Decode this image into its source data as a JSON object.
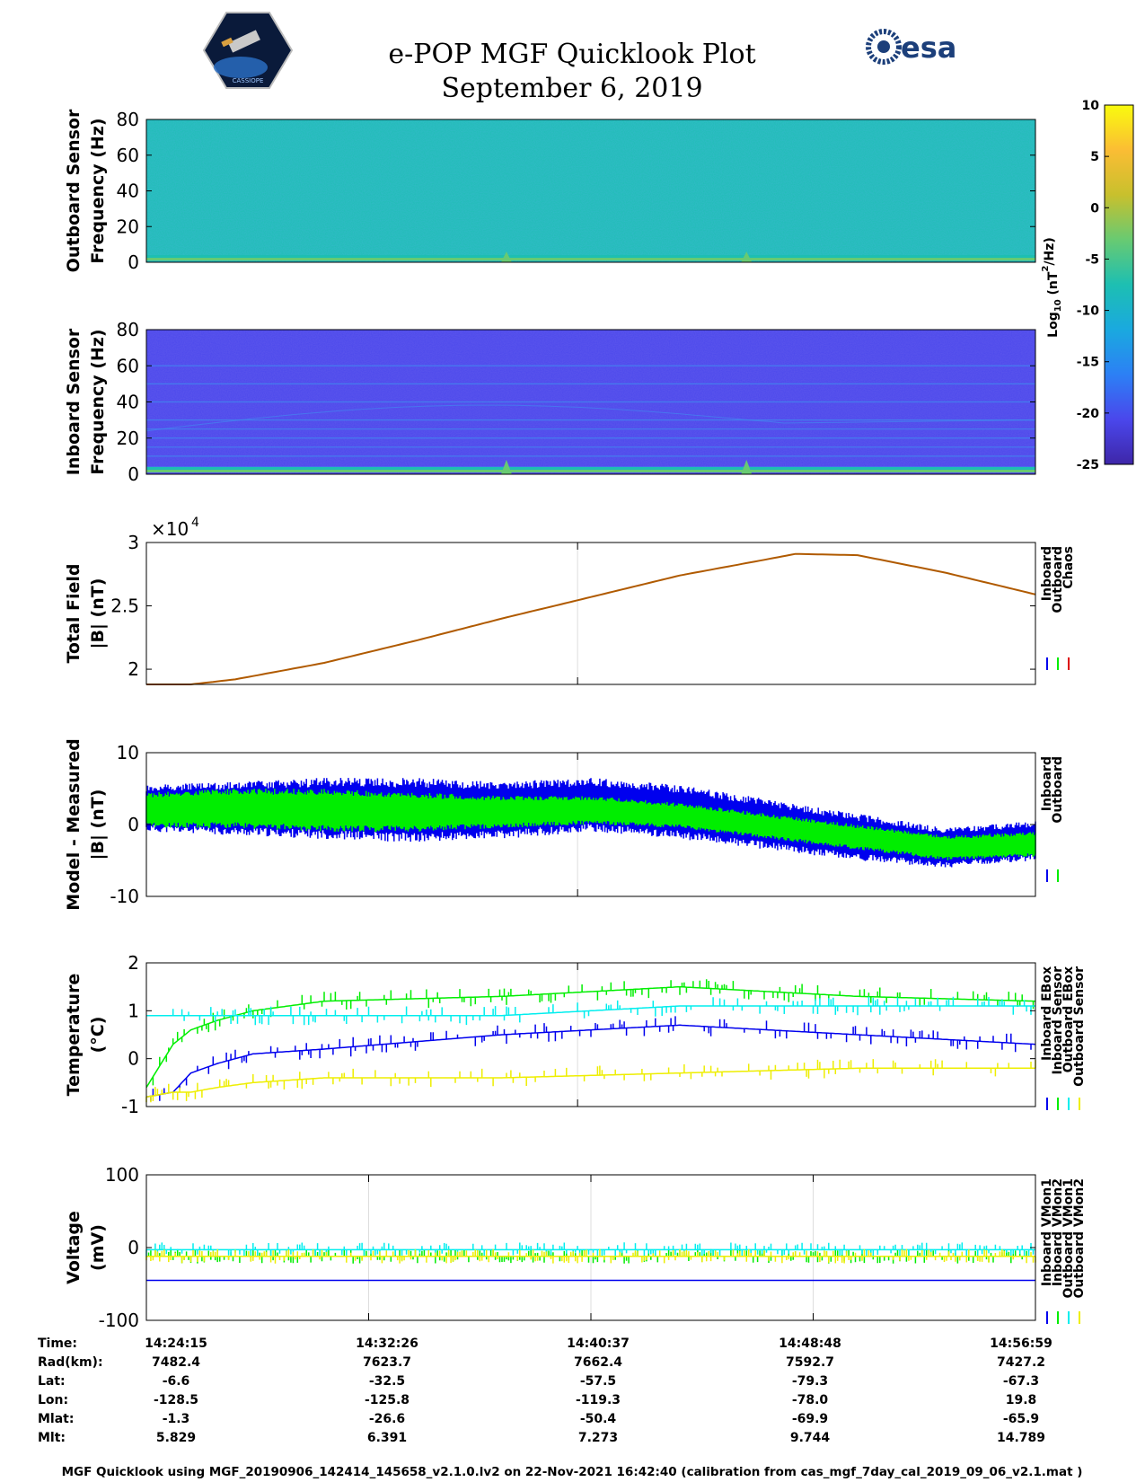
{
  "header": {
    "title": "e-POP MGF Quicklook Plot",
    "date": "September 6, 2019",
    "logo_left": "CASSIOPE",
    "logo_right": "esa"
  },
  "colorbar": {
    "label_base": "Log",
    "label_sub": "10",
    "label_unit_open": " (nT",
    "label_sup": "2",
    "label_unit_close": "/Hz)",
    "ticks": [
      10,
      5,
      0,
      -5,
      -10,
      -15,
      -20,
      -25
    ],
    "range": [
      -25,
      10
    ],
    "gradient": [
      "#3e26a8",
      "#4a47ec",
      "#2c80f5",
      "#1aa9df",
      "#1dbfb2",
      "#68ca72",
      "#c8c02d",
      "#fbbd34",
      "#f9fb0e"
    ]
  },
  "colors": {
    "blue": "#0000ee",
    "green": "#00ee00",
    "red": "#dd0000",
    "cyan": "#00eeee",
    "yellow": "#eeee00",
    "brown": "#b05a00",
    "spec_out_bg": "#2d86ee",
    "spec_in_bg": "#4540d8"
  },
  "footer": "MGF Quicklook using MGF_20190906_142414_145658_v2.1.0.lv2 on 22-Nov-2021 16:42:40 (calibration from cas_mgf_7day_cal_2019_09_06_v2.1.mat )",
  "info_table": {
    "row_labels": [
      "Time:",
      "Rad(km):",
      "Lat:",
      "Lon:",
      "Mlat:",
      "Mlt:"
    ],
    "columns": [
      {
        "Time": "14:24:15",
        "Rad": "7482.4",
        "Lat": "-6.6",
        "Lon": "-128.5",
        "Mlat": "-1.3",
        "Mlt": "5.829"
      },
      {
        "Time": "14:32:26",
        "Rad": "7623.7",
        "Lat": "-32.5",
        "Lon": "-125.8",
        "Mlat": "-26.6",
        "Mlt": "6.391"
      },
      {
        "Time": "14:40:37",
        "Rad": "7662.4",
        "Lat": "-57.5",
        "Lon": "-119.3",
        "Mlat": "-50.4",
        "Mlt": "7.273"
      },
      {
        "Time": "14:48:48",
        "Rad": "7592.7",
        "Lat": "-79.3",
        "Lon": "-78.0",
        "Mlat": "-69.9",
        "Mlt": "9.744"
      },
      {
        "Time": "14:56:59",
        "Rad": "7427.2",
        "Lat": "-67.3",
        "Lon": "19.8",
        "Mlat": "-65.9",
        "Mlt": "14.789"
      }
    ]
  },
  "chart_data": [
    {
      "type": "heatmap",
      "id": "outboard",
      "ylabel": [
        "Outboard Sensor",
        "Frequency (Hz)"
      ],
      "ylim": [
        0,
        80
      ],
      "yticks": [
        0,
        20,
        40,
        60,
        80
      ],
      "background_log10": -8,
      "bands": [
        {
          "freq": 1.5,
          "log10": -2
        },
        {
          "freq": 3.0,
          "log10": -6
        }
      ],
      "spikes": [
        {
          "t": 0.405,
          "freq": 6,
          "log10": -4
        },
        {
          "t": 0.675,
          "freq": 6,
          "log10": -5
        }
      ]
    },
    {
      "type": "heatmap",
      "id": "inboard",
      "ylabel": [
        "Inboard Sensor",
        "Frequency (Hz)"
      ],
      "ylim": [
        0,
        80
      ],
      "yticks": [
        0,
        20,
        40,
        60,
        80
      ],
      "background_log10": -21,
      "harmonic_lines_hz": [
        4,
        10,
        15,
        20,
        25,
        30,
        40,
        50,
        60
      ],
      "bands": [
        {
          "freq": 1.5,
          "log10": -2
        },
        {
          "freq": 3.0,
          "log10": -6
        }
      ],
      "spikes": [
        {
          "t": 0.405,
          "freq": 8,
          "log10": -4
        },
        {
          "t": 0.675,
          "freq": 8,
          "log10": -4
        }
      ]
    },
    {
      "type": "line",
      "id": "totalfield",
      "ylabel": [
        "Total Field",
        "|B| (nT)"
      ],
      "exponent_label": "×10",
      "exponent_sup": "4",
      "ylim": [
        1.88,
        3.0
      ],
      "yticks": [
        2,
        2.5,
        3
      ],
      "yticklabels": [
        "2",
        "2.5",
        "3"
      ],
      "x": [
        0,
        0.05,
        0.1,
        0.2,
        0.3,
        0.4,
        0.5,
        0.6,
        0.7,
        0.73,
        0.8,
        0.9,
        1.0
      ],
      "series": [
        {
          "name": "Inboard",
          "color": "blue",
          "values": [
            1.88,
            1.88,
            1.92,
            2.05,
            2.22,
            2.4,
            2.57,
            2.74,
            2.87,
            2.91,
            2.9,
            2.76,
            2.59
          ]
        },
        {
          "name": "Outboard",
          "color": "green",
          "values": [
            1.88,
            1.88,
            1.92,
            2.05,
            2.22,
            2.4,
            2.57,
            2.74,
            2.87,
            2.91,
            2.9,
            2.76,
            2.59
          ]
        },
        {
          "name": "Chaos",
          "color": "red",
          "values": [
            1.88,
            1.88,
            1.92,
            2.05,
            2.22,
            2.4,
            2.57,
            2.74,
            2.87,
            2.91,
            2.9,
            2.76,
            2.59
          ]
        }
      ],
      "legend": [
        "Inboard",
        "Outboard",
        "Chaos"
      ]
    },
    {
      "type": "line",
      "id": "modeldiff",
      "ylabel": [
        "Model - Measured",
        "|B| (nT)"
      ],
      "ylim": [
        -10,
        10
      ],
      "yticks": [
        -10,
        0,
        10
      ],
      "yticklabels": [
        "-10",
        "0",
        "10"
      ],
      "x": [
        0,
        0.1,
        0.2,
        0.3,
        0.4,
        0.5,
        0.6,
        0.7,
        0.8,
        0.9,
        1.0
      ],
      "series": [
        {
          "name": "Inboard",
          "color": "blue",
          "upper": [
            5.5,
            6.0,
            6.5,
            6.5,
            6.0,
            6.5,
            5.5,
            3.5,
            1.5,
            -0.5,
            0.5
          ],
          "lower": [
            -1.0,
            -1.5,
            -2.0,
            -2.5,
            -2.0,
            -1.0,
            -2.0,
            -3.5,
            -5.0,
            -6.0,
            -5.0
          ]
        },
        {
          "name": "Outboard",
          "color": "green",
          "upper": [
            4.5,
            5.0,
            5.0,
            4.5,
            4.0,
            4.0,
            3.0,
            1.5,
            0.0,
            -1.5,
            -1.0
          ],
          "lower": [
            -0.5,
            -0.5,
            -1.0,
            -1.0,
            -0.5,
            0.0,
            -0.5,
            -2.0,
            -3.5,
            -5.0,
            -4.5
          ]
        }
      ],
      "legend": [
        "Inboard",
        "Outboard"
      ]
    },
    {
      "type": "line",
      "id": "temperature",
      "ylabel": [
        "Temperature",
        "(°C)"
      ],
      "ylim": [
        -1,
        2
      ],
      "yticks": [
        -1,
        0,
        1,
        2
      ],
      "yticklabels": [
        "-1",
        "0",
        "1",
        "2"
      ],
      "x": [
        0,
        0.03,
        0.05,
        0.08,
        0.12,
        0.2,
        0.4,
        0.6,
        0.8,
        1.0
      ],
      "series": [
        {
          "name": "Inboard EBox",
          "color": "blue",
          "values": [
            -0.8,
            -0.7,
            -0.3,
            -0.1,
            0.1,
            0.2,
            0.5,
            0.7,
            0.5,
            0.3
          ]
        },
        {
          "name": "Inboard Sensor",
          "color": "green",
          "values": [
            -0.6,
            0.3,
            0.6,
            0.8,
            1.0,
            1.2,
            1.3,
            1.5,
            1.3,
            1.2
          ]
        },
        {
          "name": "Outboard EBox",
          "color": "cyan",
          "values": [
            0.9,
            0.9,
            0.9,
            0.9,
            0.9,
            0.9,
            0.9,
            1.1,
            1.1,
            1.1
          ]
        },
        {
          "name": "Outboard Sensor",
          "color": "yellow",
          "values": [
            -0.8,
            -0.7,
            -0.7,
            -0.6,
            -0.5,
            -0.4,
            -0.4,
            -0.3,
            -0.2,
            -0.2
          ]
        }
      ],
      "legend": [
        "Inboard EBox",
        "Inboard Sensor",
        "Outboard EBox",
        "Outboard Sensor"
      ]
    },
    {
      "type": "line",
      "id": "voltage",
      "ylabel": [
        "Voltage",
        "(mV)"
      ],
      "ylim": [
        -100,
        100
      ],
      "yticks": [
        -100,
        0,
        100
      ],
      "yticklabels": [
        "-100",
        "0",
        "100"
      ],
      "x": [
        0,
        0.25,
        0.5,
        0.75,
        1.0
      ],
      "series": [
        {
          "name": "Inboard VMon1",
          "color": "blue",
          "values": [
            -45,
            -45,
            -45,
            -45,
            -45
          ]
        },
        {
          "name": "Inboard VMon2",
          "color": "green",
          "values": [
            -12,
            -12,
            -12,
            -12,
            -12
          ]
        },
        {
          "name": "Outboard VMon1",
          "color": "cyan",
          "values": [
            -3,
            -3,
            -3,
            -3,
            -3
          ]
        },
        {
          "name": "Outboard VMon2",
          "color": "yellow",
          "values": [
            -12,
            -12,
            -12,
            -12,
            -12
          ]
        }
      ],
      "legend": [
        "Inboard VMon1",
        "Inboard VMon2",
        "Outboard VMon1",
        "Outboard VMon2"
      ]
    }
  ]
}
